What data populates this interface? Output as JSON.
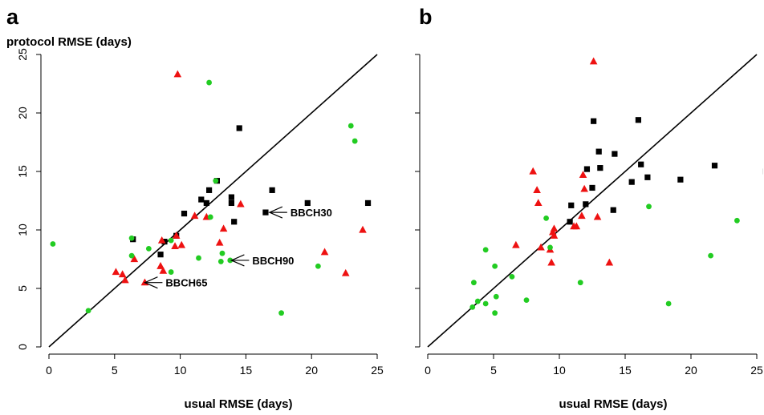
{
  "colors": {
    "black_series": "#000000",
    "red_series": "#ee1111",
    "green_series": "#22cc22",
    "axis": "#000000"
  },
  "chart_data": [
    {
      "type": "scatter",
      "panel_label": "a",
      "xlabel": "usual RMSE (days)",
      "ylabel": "protocol RMSE (days)",
      "xlim": [
        0,
        25
      ],
      "ylim": [
        0,
        25
      ],
      "xticks": [
        "0",
        "5",
        "10",
        "15",
        "20",
        "25"
      ],
      "yticks": [
        "0",
        "5",
        "10",
        "15",
        "20",
        "25"
      ],
      "grid": false,
      "reference_line": "1:1",
      "annotations": [
        {
          "text": "BBCH30",
          "x": 16.8,
          "y": 11.5
        },
        {
          "text": "BBCH90",
          "x": 14.0,
          "y": 7.4
        },
        {
          "text": "BBCH65",
          "x": 7.5,
          "y": 5.4
        }
      ],
      "series": [
        {
          "marker": "square",
          "color": "#000000",
          "points": [
            [
              6.4,
              9.2
            ],
            [
              8.5,
              7.9
            ],
            [
              8.8,
              9.0
            ],
            [
              9.7,
              9.5
            ],
            [
              10.3,
              11.4
            ],
            [
              11.6,
              12.6
            ],
            [
              12.0,
              12.3
            ],
            [
              12.2,
              13.4
            ],
            [
              12.8,
              14.2
            ],
            [
              13.9,
              12.8
            ],
            [
              13.9,
              12.3
            ],
            [
              14.1,
              10.7
            ],
            [
              14.5,
              18.7
            ],
            [
              16.5,
              11.5
            ],
            [
              17.0,
              13.4
            ],
            [
              19.7,
              12.3
            ],
            [
              24.3,
              12.3
            ]
          ]
        },
        {
          "marker": "triangle",
          "color": "#ee1111",
          "points": [
            [
              5.1,
              6.4
            ],
            [
              5.6,
              6.2
            ],
            [
              5.8,
              5.7
            ],
            [
              6.5,
              7.5
            ],
            [
              7.3,
              5.5
            ],
            [
              8.5,
              6.9
            ],
            [
              8.7,
              6.5
            ],
            [
              8.6,
              9.1
            ],
            [
              9.6,
              8.6
            ],
            [
              9.7,
              9.5
            ],
            [
              9.8,
              23.3
            ],
            [
              10.1,
              8.7
            ],
            [
              11.1,
              11.2
            ],
            [
              12.0,
              11.1
            ],
            [
              13.0,
              8.9
            ],
            [
              13.3,
              10.1
            ],
            [
              14.6,
              12.2
            ],
            [
              21.0,
              8.1
            ],
            [
              22.6,
              6.3
            ],
            [
              23.9,
              10.0
            ]
          ]
        },
        {
          "marker": "circle",
          "color": "#22cc22",
          "points": [
            [
              0.3,
              8.8
            ],
            [
              3.0,
              3.1
            ],
            [
              6.3,
              9.3
            ],
            [
              6.3,
              7.8
            ],
            [
              7.6,
              8.4
            ],
            [
              9.3,
              6.4
            ],
            [
              9.3,
              9.1
            ],
            [
              11.4,
              7.6
            ],
            [
              12.2,
              22.6
            ],
            [
              12.3,
              11.1
            ],
            [
              12.7,
              14.2
            ],
            [
              13.1,
              7.3
            ],
            [
              13.2,
              8.0
            ],
            [
              13.8,
              7.4
            ],
            [
              17.7,
              2.9
            ],
            [
              20.5,
              6.9
            ],
            [
              23.0,
              18.9
            ],
            [
              23.3,
              17.6
            ]
          ]
        }
      ]
    },
    {
      "type": "scatter",
      "panel_label": "b",
      "xlabel": "usual RMSE (days)",
      "ylabel": "",
      "xlim": [
        0,
        25
      ],
      "ylim": [
        0,
        25
      ],
      "xticks": [
        "0",
        "5",
        "10",
        "15",
        "20",
        "25"
      ],
      "yticks": [],
      "grid": false,
      "reference_line": "1:1",
      "annotations": [],
      "series": [
        {
          "marker": "square",
          "color": "#000000",
          "points": [
            [
              10.8,
              10.7
            ],
            [
              10.9,
              12.1
            ],
            [
              12.0,
              12.2
            ],
            [
              12.1,
              15.2
            ],
            [
              12.5,
              13.6
            ],
            [
              12.6,
              19.3
            ],
            [
              13.0,
              16.7
            ],
            [
              13.1,
              15.3
            ],
            [
              14.1,
              11.7
            ],
            [
              14.2,
              16.5
            ],
            [
              15.5,
              14.1
            ],
            [
              16.0,
              19.4
            ],
            [
              16.2,
              15.6
            ],
            [
              16.7,
              14.5
            ],
            [
              19.2,
              14.3
            ],
            [
              21.8,
              15.5
            ],
            [
              25.7,
              15.0
            ]
          ]
        },
        {
          "marker": "triangle",
          "color": "#ee1111",
          "points": [
            [
              6.7,
              8.7
            ],
            [
              8.0,
              15.0
            ],
            [
              8.3,
              13.4
            ],
            [
              8.4,
              12.3
            ],
            [
              8.6,
              8.5
            ],
            [
              9.3,
              8.3
            ],
            [
              9.4,
              7.2
            ],
            [
              9.5,
              9.8
            ],
            [
              9.6,
              10.1
            ],
            [
              9.6,
              9.5
            ],
            [
              11.1,
              10.3
            ],
            [
              11.3,
              10.3
            ],
            [
              11.7,
              11.2
            ],
            [
              11.8,
              14.7
            ],
            [
              11.9,
              13.5
            ],
            [
              12.6,
              24.4
            ],
            [
              12.9,
              11.1
            ],
            [
              13.8,
              7.2
            ]
          ]
        },
        {
          "marker": "circle",
          "color": "#22cc22",
          "points": [
            [
              3.4,
              3.4
            ],
            [
              3.5,
              5.5
            ],
            [
              3.8,
              3.9
            ],
            [
              4.4,
              3.7
            ],
            [
              4.4,
              8.3
            ],
            [
              5.1,
              2.9
            ],
            [
              5.2,
              4.3
            ],
            [
              5.1,
              6.9
            ],
            [
              6.4,
              6.0
            ],
            [
              7.5,
              4.0
            ],
            [
              9.0,
              11.0
            ],
            [
              9.3,
              8.5
            ],
            [
              11.6,
              5.5
            ],
            [
              16.8,
              12.0
            ],
            [
              18.3,
              3.7
            ],
            [
              21.5,
              7.8
            ],
            [
              23.5,
              10.8
            ]
          ]
        }
      ]
    }
  ]
}
